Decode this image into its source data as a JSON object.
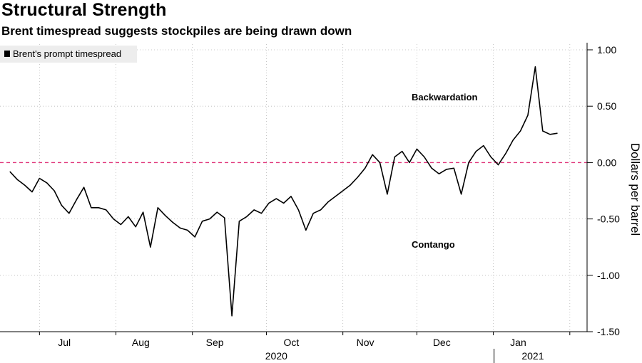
{
  "title": "Structural Strength",
  "subtitle": "Brent timespread suggests stockpiles are being drawn down",
  "chart_data": {
    "type": "line",
    "title": "Structural Strength",
    "subtitle": "Brent timespread suggests stockpiles are being drawn down",
    "ylabel": "Dollars per barrel",
    "ylim": [
      -1.5,
      1.0
    ],
    "yticks": [
      1.0,
      0.5,
      0.0,
      -0.5,
      -1.0,
      -1.5
    ],
    "ytick_labels": [
      "1.00",
      "0.50",
      "0.00",
      "-0.50",
      "-1.00",
      "-1.50"
    ],
    "xticks": [
      "Jul",
      "Aug",
      "Sep",
      "Oct",
      "Nov",
      "Dec",
      "Jan"
    ],
    "year_labels": [
      "2020",
      "2021"
    ],
    "reference_line": 0.0,
    "annotations": [
      "Backwardation",
      "Contango"
    ],
    "grid": true,
    "legend_position": "top-left",
    "series": [
      {
        "name": "Brent's prompt timespread",
        "color": "#000000",
        "x": [
          "2020-06-19",
          "2020-06-22",
          "2020-06-25",
          "2020-06-28",
          "2020-07-01",
          "2020-07-04",
          "2020-07-07",
          "2020-07-10",
          "2020-07-13",
          "2020-07-16",
          "2020-07-19",
          "2020-07-22",
          "2020-07-25",
          "2020-07-28",
          "2020-07-31",
          "2020-08-03",
          "2020-08-06",
          "2020-08-09",
          "2020-08-12",
          "2020-08-15",
          "2020-08-18",
          "2020-08-21",
          "2020-08-24",
          "2020-08-27",
          "2020-08-30",
          "2020-09-02",
          "2020-09-05",
          "2020-09-08",
          "2020-09-11",
          "2020-09-14",
          "2020-09-17",
          "2020-09-20",
          "2020-09-23",
          "2020-09-26",
          "2020-09-29",
          "2020-10-02",
          "2020-10-05",
          "2020-10-08",
          "2020-10-11",
          "2020-10-14",
          "2020-10-17",
          "2020-10-20",
          "2020-10-23",
          "2020-10-26",
          "2020-10-29",
          "2020-11-01",
          "2020-11-04",
          "2020-11-07",
          "2020-11-10",
          "2020-11-13",
          "2020-11-16",
          "2020-11-19",
          "2020-11-22",
          "2020-11-25",
          "2020-11-28",
          "2020-12-01",
          "2020-12-04",
          "2020-12-07",
          "2020-12-10",
          "2020-12-13",
          "2020-12-16",
          "2020-12-19",
          "2020-12-22",
          "2020-12-25",
          "2020-12-28",
          "2020-12-31",
          "2021-01-03",
          "2021-01-06",
          "2021-01-09",
          "2021-01-12",
          "2021-01-15",
          "2021-01-18",
          "2021-01-21",
          "2021-01-24",
          "2021-01-27"
        ],
        "values": [
          -0.08,
          -0.15,
          -0.2,
          -0.26,
          -0.14,
          -0.18,
          -0.25,
          -0.38,
          -0.45,
          -0.33,
          -0.22,
          -0.4,
          -0.4,
          -0.42,
          -0.5,
          -0.55,
          -0.48,
          -0.57,
          -0.44,
          -0.75,
          -0.4,
          -0.47,
          -0.53,
          -0.58,
          -0.6,
          -0.66,
          -0.52,
          -0.5,
          -0.44,
          -0.49,
          -1.36,
          -0.52,
          -0.48,
          -0.42,
          -0.45,
          -0.36,
          -0.32,
          -0.36,
          -0.3,
          -0.42,
          -0.6,
          -0.45,
          -0.42,
          -0.35,
          -0.3,
          -0.25,
          -0.2,
          -0.13,
          -0.05,
          0.07,
          0.0,
          -0.28,
          0.05,
          0.1,
          0.0,
          0.12,
          0.05,
          -0.05,
          -0.1,
          -0.06,
          -0.05,
          -0.28,
          0.0,
          0.1,
          0.15,
          0.05,
          -0.02,
          0.08,
          0.2,
          0.28,
          0.42,
          0.85,
          0.28,
          0.25,
          0.26
        ]
      }
    ]
  }
}
